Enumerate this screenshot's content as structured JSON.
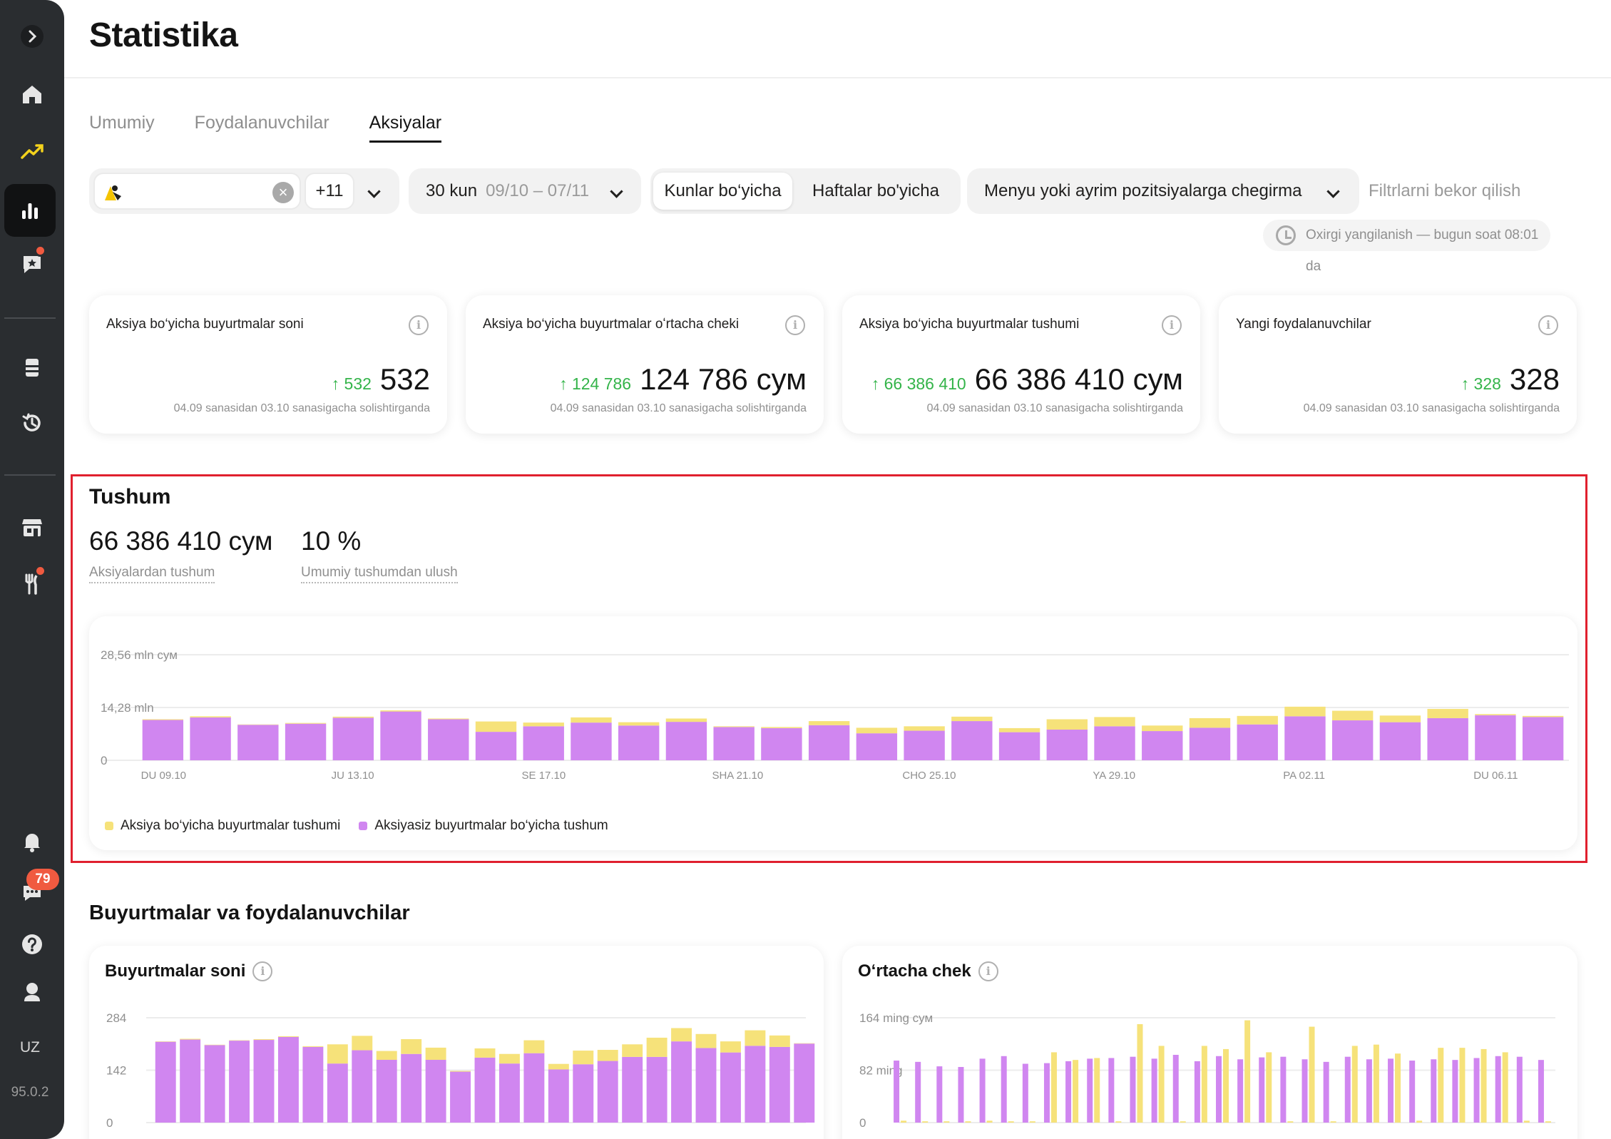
{
  "page": {
    "title": "Statistika"
  },
  "tabs": [
    {
      "label": "Umumiy",
      "active": false
    },
    {
      "label": "Foydalanuvchilar",
      "active": false
    },
    {
      "label": "Aksiyalar",
      "active": true
    }
  ],
  "filters": {
    "restaurant_count": "+11",
    "period_label": "30 kun",
    "period_range": "09/10 – 07/11",
    "granularity": [
      "Kunlar bo‘yicha",
      "Haftalar bo'yicha"
    ],
    "granularity_selected": 0,
    "promo_type": "Menyu yoki ayrim pozitsiyalarga chegirma",
    "reset_label": "Filtrlarni bekor qilish",
    "last_update": "Oxirgi yangilanish — bugun soat 08:01 da"
  },
  "sidebar": {
    "icons": [
      "expand-icon",
      "home-icon",
      "trend-icon",
      "bar-chart-icon",
      "reviews-icon",
      "tablet-icon",
      "history-icon",
      "store-icon",
      "restaurant-icon",
      "bell-icon",
      "chat-icon",
      "help-icon",
      "profile-icon"
    ],
    "active": "bar-chart-icon",
    "chat_badge": "79",
    "language": "UZ",
    "version": "95.0.2"
  },
  "kpis": [
    {
      "title": "Aksiya bo‘yicha buyurtmalar soni",
      "delta": "↑ 532",
      "value": "532",
      "note": "04.09 sanasidan 03.10 sanasigacha solishtirganda"
    },
    {
      "title": "Aksiya bo‘yicha buyurtmalar oʻrtacha cheki",
      "delta": "↑ 124 786",
      "value": "124 786 сум",
      "note": "04.09 sanasidan 03.10 sanasigacha solishtirganda"
    },
    {
      "title": "Aksiya bo‘yicha buyurtmalar tushumi",
      "delta": "↑ 66 386 410",
      "value": "66 386 410 сум",
      "note": "04.09 sanasidan 03.10 sanasigacha solishtirganda"
    },
    {
      "title": "Yangi foydalanuvchilar",
      "delta": "↑ 328",
      "value": "328",
      "note": "04.09 sanasidan 03.10 sanasigacha solishtirganda"
    }
  ],
  "revenue": {
    "title": "Tushum",
    "promo_revenue": "66 386 410 сум",
    "promo_revenue_label": "Aksiyalardan tushum",
    "share": "10 %",
    "share_label": "Umumiy tushumdan ulush"
  },
  "orders_section": {
    "title": "Buyurtmalar va foydalanuvchilar",
    "orders_chart_title": "Buyurtmalar soni",
    "avg_check_chart_title": "Oʻrtacha chek"
  },
  "colors": {
    "promo": "#f6e27a",
    "nonpromo": "#d086f0",
    "accent_green": "#34b44a",
    "highlight": "#e0202e"
  },
  "chart_data": [
    {
      "type": "bar",
      "stacked": true,
      "x_ticks": [
        "DU 09.10",
        "JU 13.10",
        "SE 17.10",
        "SHA 21.10",
        "CHO 25.10",
        "YA 29.10",
        "PA 02.11",
        "DU 06.11"
      ],
      "y_ticks": [
        "0",
        "14,28 mln",
        "28,56 mln сум"
      ],
      "ylim": [
        0,
        28.56
      ],
      "grid": true,
      "legend_position": "bottom-left",
      "series": [
        {
          "name": "Aksiyasiz buyurtmalar bo‘yicha tushum",
          "color": "#d086f0",
          "values": [
            10.9,
            11.6,
            9.6,
            9.9,
            11.5,
            13.2,
            11.1,
            7.7,
            9.2,
            10.2,
            9.4,
            10.4,
            9.0,
            8.7,
            9.5,
            7.3,
            8.0,
            10.6,
            7.6,
            8.3,
            9.2,
            7.9,
            8.8,
            9.7,
            11.9,
            10.8,
            10.3,
            11.4,
            12.2,
            11.7
          ]
        },
        {
          "name": "Aksiya bo‘yicha buyurtmalar tushumi",
          "color": "#f6e27a",
          "values": [
            0.2,
            0.3,
            0.1,
            0.2,
            0.3,
            0.3,
            0.2,
            2.8,
            1.0,
            1.4,
            0.9,
            0.9,
            0.2,
            0.3,
            1.1,
            1.5,
            1.2,
            1.2,
            1.1,
            2.8,
            2.5,
            1.5,
            2.6,
            2.3,
            2.6,
            2.6,
            1.8,
            2.5,
            0.3,
            0.3
          ]
        }
      ]
    },
    {
      "type": "bar",
      "stacked": true,
      "title": "Buyurtmalar soni",
      "y_ticks": [
        "0",
        "142",
        "284"
      ],
      "ylim": [
        0,
        284
      ],
      "series": [
        {
          "name": "Aksiyasiz buyurtmalar bo‘yicha tushum",
          "color": "#d086f0",
          "values": [
            219,
            225,
            210,
            222,
            224,
            232,
            205,
            160,
            196,
            170,
            186,
            170,
            138,
            176,
            160,
            188,
            144,
            158,
            167,
            178,
            178,
            220,
            202,
            190,
            208,
            205,
            214
          ]
        },
        {
          "name": "Aksiya bo‘yicha buyurtmalar tushumi",
          "color": "#f6e27a",
          "values": [
            1,
            2,
            1,
            1,
            2,
            2,
            2,
            52,
            39,
            24,
            40,
            33,
            2,
            25,
            26,
            35,
            15,
            37,
            30,
            34,
            52,
            36,
            38,
            30,
            42,
            31,
            1
          ]
        }
      ]
    },
    {
      "type": "bar",
      "grouped": true,
      "title": "Oʻrtacha chek",
      "y_ticks": [
        "0",
        "82 ming",
        "164 ming сум"
      ],
      "ylim": [
        0,
        164
      ],
      "series": [
        {
          "name": "Aksiyasiz buyurtmalar bo‘yicha tushum",
          "color": "#d086f0",
          "values": [
            97,
            95,
            88,
            87,
            100,
            104,
            92,
            93,
            96,
            100,
            101,
            103,
            100,
            106,
            96,
            104,
            99,
            102,
            103,
            99,
            95,
            103,
            99,
            100,
            97,
            99,
            98,
            101,
            104,
            103,
            98
          ]
        },
        {
          "name": "Aksiya bo‘yicha buyurtmalar tushumi",
          "color": "#f6e27a",
          "values": [
            3,
            2,
            2,
            2,
            3,
            2,
            2,
            110,
            98,
            101,
            2,
            154,
            120,
            2,
            120,
            115,
            160,
            110,
            2,
            150,
            2,
            120,
            122,
            108,
            3,
            117,
            117,
            115,
            110,
            3,
            2
          ]
        }
      ]
    }
  ]
}
